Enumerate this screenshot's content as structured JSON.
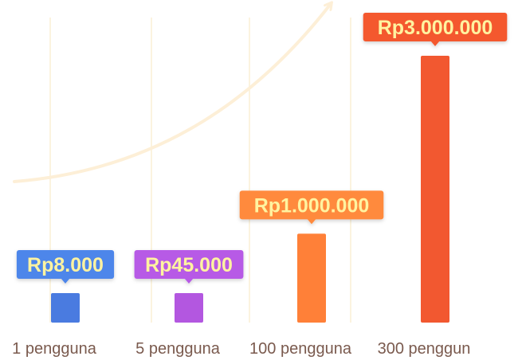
{
  "chart_data": {
    "type": "bar",
    "categories": [
      "1 pengguna",
      "5 pengguna",
      "100 pengguna",
      "300 penggun"
    ],
    "values": [
      8000,
      45000,
      1000000,
      3000000
    ],
    "value_labels": [
      "Rp8.000",
      "Rp45.000",
      "Rp1.000.000",
      "Rp3.000.000"
    ],
    "title": "",
    "xlabel": "",
    "ylabel": "",
    "grid": "vertical lines between categories",
    "legend": "none",
    "trend_arrow": "curved upward arrow from left to top-right",
    "colors": {
      "bars": [
        "#4a7be0",
        "#b357e0",
        "#ff8038",
        "#f25830"
      ],
      "label_boxes": [
        "#4e86ea",
        "#b75ae6",
        "#ff8a3d",
        "#f4582f"
      ],
      "label_text": "#fff3a0",
      "category_text": "#7a5a4e",
      "gridlines": "#fbf3df",
      "arrow": "#fdefd7"
    }
  }
}
